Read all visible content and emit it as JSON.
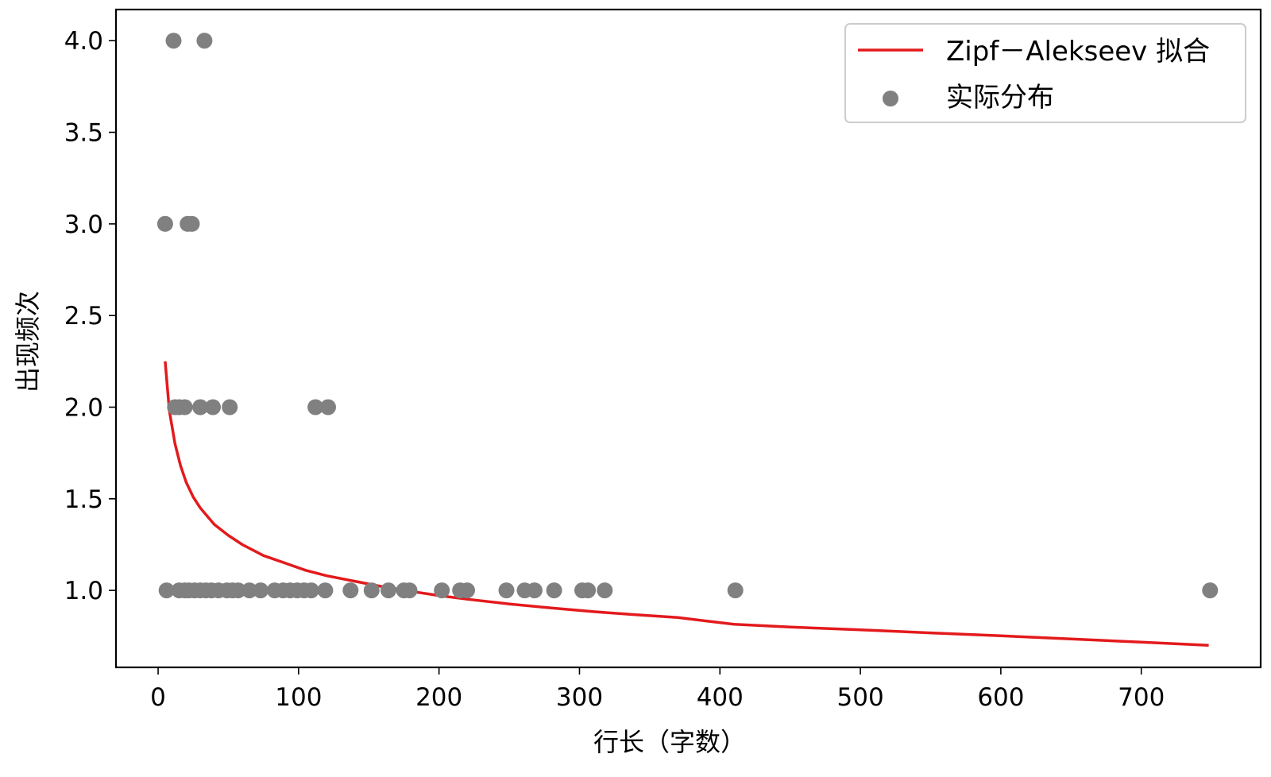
{
  "chart_data": {
    "type": "scatter",
    "xlabel": "行长（字数）",
    "ylabel": "出现频次",
    "xlim": [
      -30,
      785
    ],
    "ylim": [
      0.58,
      4.17
    ],
    "x_ticks": [
      0,
      100,
      200,
      300,
      400,
      500,
      600,
      700
    ],
    "x_tick_labels": [
      "0",
      "100",
      "200",
      "300",
      "400",
      "500",
      "600",
      "700"
    ],
    "y_ticks": [
      1.0,
      1.5,
      2.0,
      2.5,
      3.0,
      3.5,
      4.0
    ],
    "y_tick_labels": [
      "1.0",
      "1.5",
      "2.0",
      "2.5",
      "3.0",
      "3.5",
      "4.0"
    ],
    "grid": false,
    "legend_position": "top-right",
    "series": [
      {
        "name": "Zipf－Alekseev 拟合",
        "kind": "line",
        "color": "#e31a1c",
        "x": [
          5,
          8,
          12,
          16,
          20,
          25,
          30,
          40,
          50,
          60,
          75,
          90,
          105,
          120,
          140,
          160,
          180,
          200,
          220,
          250,
          280,
          310,
          340,
          370,
          410,
          450,
          500,
          550,
          600,
          650,
          700,
          748
        ],
        "y": [
          2.25,
          1.98,
          1.8,
          1.68,
          1.59,
          1.51,
          1.45,
          1.36,
          1.3,
          1.25,
          1.19,
          1.15,
          1.11,
          1.08,
          1.05,
          1.02,
          0.995,
          0.972,
          0.952,
          0.926,
          0.904,
          0.884,
          0.867,
          0.852,
          0.815,
          0.8,
          0.785,
          0.768,
          0.752,
          0.735,
          0.718,
          0.7
        ]
      },
      {
        "name": "实际分布",
        "kind": "scatter",
        "color": "#808080",
        "points": [
          [
            11,
            4
          ],
          [
            33,
            4
          ],
          [
            5,
            3
          ],
          [
            21,
            3
          ],
          [
            24,
            3
          ],
          [
            12,
            2
          ],
          [
            15,
            2
          ],
          [
            19,
            2
          ],
          [
            30,
            2
          ],
          [
            39,
            2
          ],
          [
            51,
            2
          ],
          [
            112,
            2
          ],
          [
            121,
            2
          ],
          [
            6,
            1
          ],
          [
            15,
            1
          ],
          [
            19,
            1
          ],
          [
            22,
            1
          ],
          [
            26,
            1
          ],
          [
            30,
            1
          ],
          [
            34,
            1
          ],
          [
            38,
            1
          ],
          [
            43,
            1
          ],
          [
            49,
            1
          ],
          [
            53,
            1
          ],
          [
            57,
            1
          ],
          [
            65,
            1
          ],
          [
            73,
            1
          ],
          [
            83,
            1
          ],
          [
            89,
            1
          ],
          [
            94,
            1
          ],
          [
            99,
            1
          ],
          [
            104,
            1
          ],
          [
            109,
            1
          ],
          [
            119,
            1
          ],
          [
            137,
            1
          ],
          [
            152,
            1
          ],
          [
            164,
            1
          ],
          [
            175,
            1
          ],
          [
            179,
            1
          ],
          [
            202,
            1
          ],
          [
            215,
            1
          ],
          [
            220,
            1
          ],
          [
            248,
            1
          ],
          [
            261,
            1
          ],
          [
            268,
            1
          ],
          [
            282,
            1
          ],
          [
            302,
            1
          ],
          [
            306,
            1
          ],
          [
            318,
            1
          ],
          [
            411,
            1
          ],
          [
            749,
            1
          ]
        ]
      }
    ]
  }
}
